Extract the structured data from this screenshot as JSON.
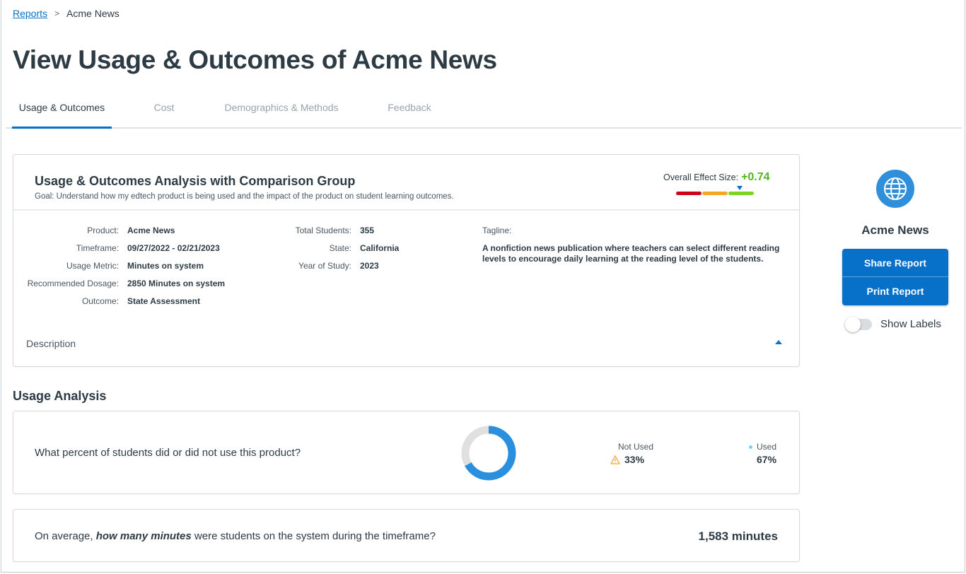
{
  "breadcrumb": {
    "parent": "Reports",
    "current": "Acme News"
  },
  "title": "View Usage & Outcomes of Acme News",
  "tabs": [
    {
      "label": "Usage & Outcomes",
      "active": true
    },
    {
      "label": "Cost"
    },
    {
      "label": "Demographics & Methods"
    },
    {
      "label": "Feedback"
    }
  ],
  "analysis": {
    "title": "Usage & Outcomes Analysis with Comparison Group",
    "goal": "Goal: Understand how my edtech product is being used and the impact of the product on student learning outcomes.",
    "effect_label": "Overall Effect Size:",
    "effect_value": "+0.74",
    "effect_colors": [
      "#d0021b",
      "#f5a623",
      "#7ed321"
    ],
    "left": [
      {
        "k": "Product:",
        "v": "Acme News"
      },
      {
        "k": "Timeframe:",
        "v": "09/27/2022 - 02/21/2023"
      },
      {
        "k": "Usage Metric:",
        "v": "Minutes on system"
      },
      {
        "k": "Recommended Dosage:",
        "v": "2850 Minutes on system"
      },
      {
        "k": "Outcome:",
        "v": "State Assessment"
      }
    ],
    "mid": [
      {
        "k": "Total Students:",
        "v": "355"
      },
      {
        "k": "State:",
        "v": "California"
      },
      {
        "k": "Year of Study:",
        "v": "2023"
      }
    ],
    "tagline_label": "Tagline:",
    "tagline": "A nonfiction news publication where teachers can select different reading levels to encourage daily learning at the reading level of the students.",
    "description_label": "Description"
  },
  "usage": {
    "heading": "Usage Analysis",
    "question": "What percent of students did or did not use this product?",
    "not_used_label": "Not Used",
    "not_used": "33%",
    "used_label": "Used",
    "used": "67%",
    "used_fraction": 0.67,
    "colors": {
      "used": "#2b8fe0",
      "not_used": "#e0e0e0",
      "legend_dot": "#6fd3f0",
      "warning": "#f5a623"
    }
  },
  "minutes": {
    "q_pre": "On average, ",
    "q_em": "how many minutes",
    "q_post": " were students on the system during the timeframe?",
    "value": "1,583 minutes"
  },
  "side": {
    "logo_icon": "globe-icon",
    "name": "Acme News",
    "share": "Share Report",
    "print": "Print Report",
    "toggle_label": "Show Labels",
    "toggle_on": false
  }
}
